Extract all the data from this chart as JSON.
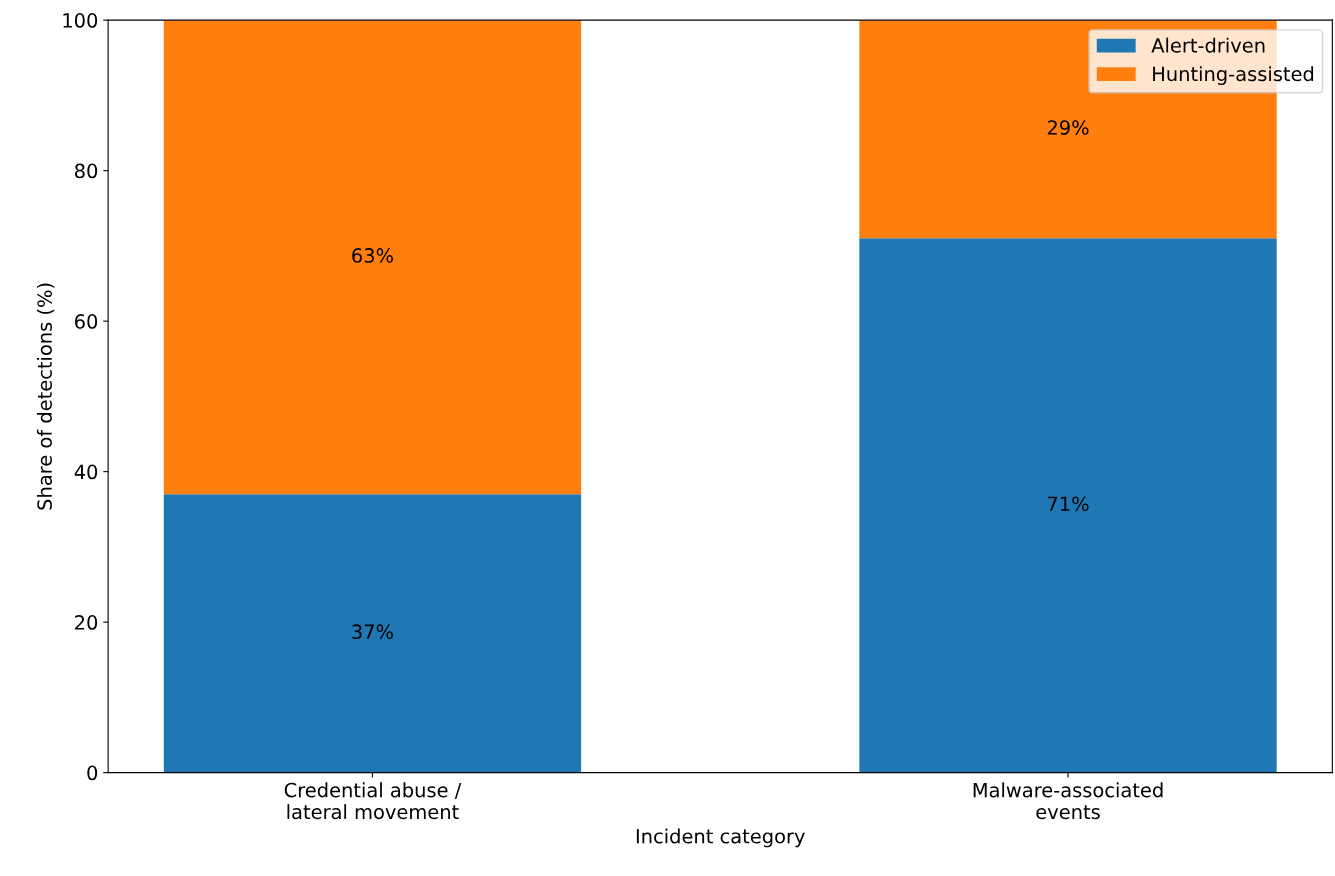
{
  "chart_data": {
    "type": "bar",
    "stacked": true,
    "xlabel": "Incident category",
    "ylabel": "Share of detections (%)",
    "categories": [
      "Credential abuse /\nlateral movement",
      "Malware-associated\nevents"
    ],
    "series": [
      {
        "name": "Alert-driven",
        "color": "#1f77b4",
        "values": [
          37,
          71
        ],
        "value_labels": [
          "37%",
          "71%"
        ]
      },
      {
        "name": "Hunting-assisted",
        "color": "#ff7f0e",
        "values": [
          63,
          29
        ],
        "value_labels": [
          "63%",
          "29%"
        ]
      }
    ],
    "ylim": [
      0,
      100
    ],
    "yticks": [
      0,
      20,
      40,
      60,
      80,
      100
    ],
    "legend": "top right",
    "grid": false
  }
}
